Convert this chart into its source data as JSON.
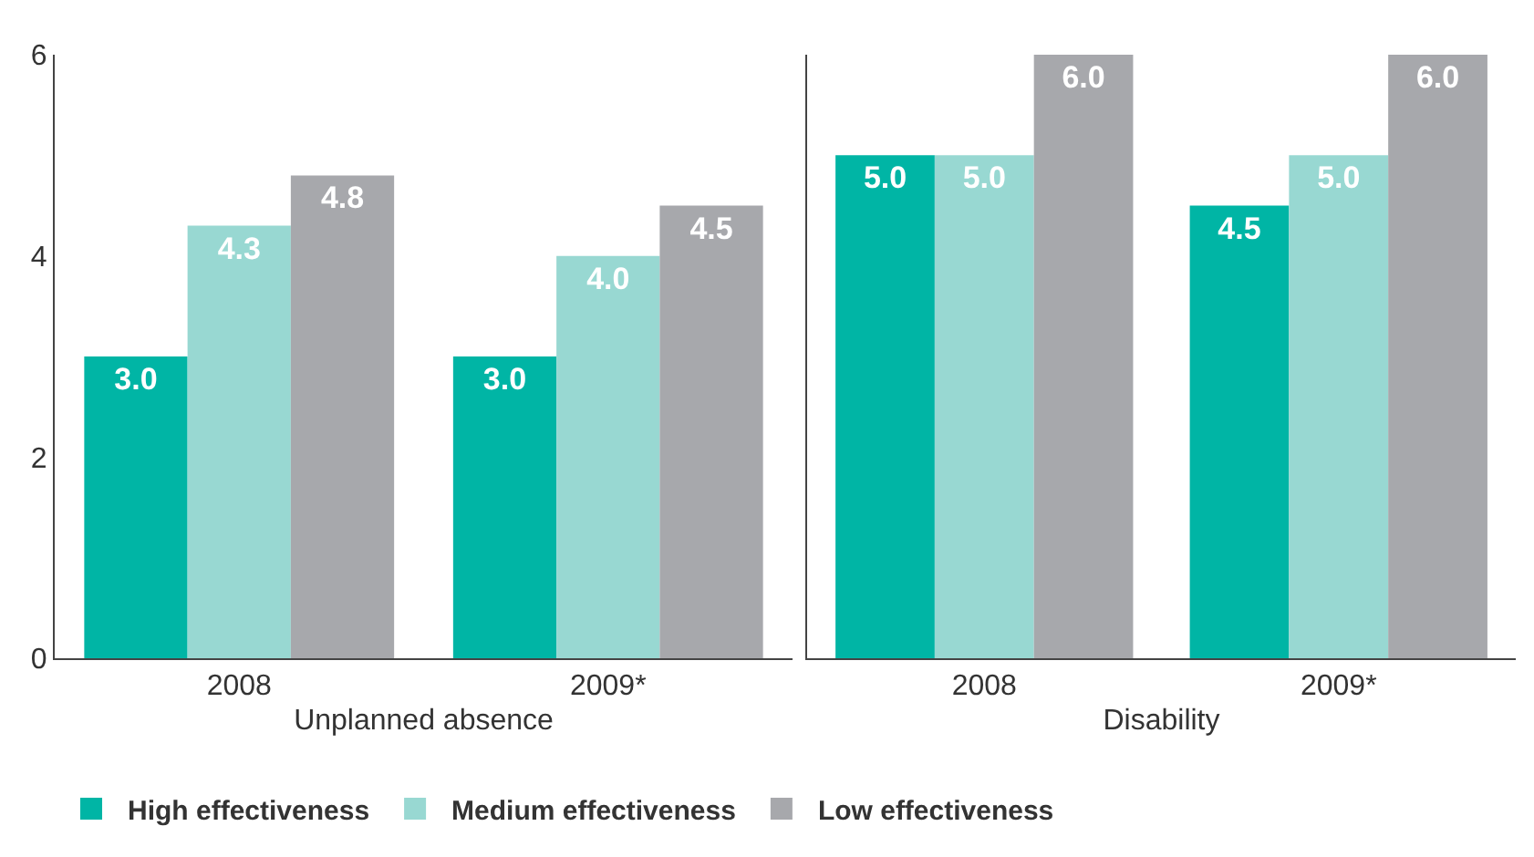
{
  "chart_data": [
    {
      "type": "bar",
      "xlabel": "Unplanned absence",
      "categories": [
        "2008",
        "2009*"
      ],
      "ylim": [
        0,
        6
      ],
      "yticks": [
        0,
        2,
        4,
        6
      ],
      "legend": "bottom",
      "series": [
        {
          "name": "High effectiveness",
          "color": "#00b5a5",
          "values": [
            3.0,
            3.0
          ],
          "value_labels": [
            "3.0",
            "3.0"
          ]
        },
        {
          "name": "Medium effectiveness",
          "color": "#98d8d2",
          "values": [
            4.3,
            4.0
          ],
          "value_labels": [
            "4.3",
            "4.0"
          ]
        },
        {
          "name": "Low effectiveness",
          "color": "#a7a8ac",
          "values": [
            4.8,
            4.5
          ],
          "value_labels": [
            "4.8",
            "4.5"
          ]
        }
      ]
    },
    {
      "type": "bar",
      "xlabel": "Disability",
      "categories": [
        "2008",
        "2009*"
      ],
      "ylim": [
        0,
        6
      ],
      "yticks": [
        0,
        2,
        4,
        6
      ],
      "tick_labels": "x",
      "series": [
        {
          "color": "#00b5a5",
          "values": [
            5.0,
            4.5
          ],
          "value_labels": [
            "5.0",
            "4.5"
          ]
        },
        {
          "color": "#98d8d2",
          "values": [
            5.0,
            5.0
          ],
          "value_labels": [
            "5.0",
            "5.0"
          ]
        },
        {
          "color": "#a7a8ac",
          "values": [
            6.0,
            6.0
          ],
          "value_labels": [
            "6.0",
            "6.0"
          ]
        }
      ]
    }
  ]
}
